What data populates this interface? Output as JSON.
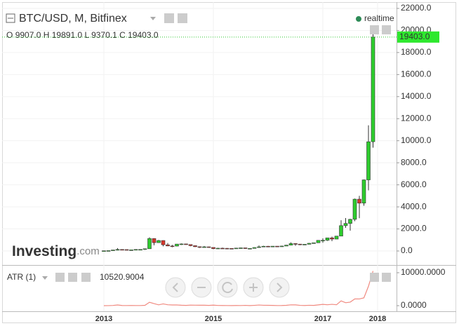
{
  "chart_data": {
    "type": "candlestick",
    "header": {
      "symbol": "BTC/USD, M, Bitfinex",
      "realtime": "realtime",
      "o_key": "O",
      "o": "9907.0",
      "h_key": "H",
      "h": "19891.0",
      "l_key": "L",
      "l": "9370.1",
      "c_key": "C",
      "c": "19403.0"
    },
    "last_price_label": "19403.0",
    "logo": {
      "main": "Investing",
      "suffix": ".com"
    },
    "categories": [
      "2013",
      null,
      null,
      null,
      null,
      null,
      null,
      null,
      null,
      null,
      null,
      null,
      null,
      null,
      null,
      null,
      null,
      null,
      null,
      null,
      null,
      null,
      null,
      null,
      "2015",
      null,
      null,
      null,
      null,
      null,
      null,
      null,
      null,
      null,
      null,
      null,
      null,
      null,
      null,
      null,
      null,
      null,
      null,
      null,
      null,
      null,
      null,
      null,
      "2017",
      null,
      null,
      null,
      null,
      null,
      null,
      null,
      null,
      null,
      null,
      null,
      "2018"
    ],
    "open": [
      13.5,
      20.4,
      33.4,
      93,
      139,
      129,
      97,
      106,
      141,
      141,
      203,
      1130,
      754,
      950,
      560,
      456,
      445,
      627,
      640,
      585,
      480,
      387,
      338,
      378,
      320,
      217,
      254,
      245,
      236,
      230,
      263,
      284,
      230,
      236,
      314,
      377,
      430,
      369,
      437,
      416,
      448,
      531,
      673,
      624,
      575,
      609,
      700,
      745,
      966,
      970,
      1190,
      1080,
      1350,
      2300,
      2500,
      2870,
      4700,
      4340,
      6450,
      9907,
      null
    ],
    "high": [
      20.4,
      33.4,
      95,
      266,
      140,
      130,
      111,
      142,
      147,
      215,
      1240,
      1150,
      1000,
      960,
      720,
      550,
      632,
      680,
      650,
      600,
      505,
      415,
      455,
      390,
      320,
      275,
      300,
      260,
      250,
      270,
      300,
      285,
      245,
      330,
      500,
      465,
      460,
      445,
      440,
      470,
      550,
      780,
      705,
      625,
      620,
      720,
      760,
      975,
      1155,
      1200,
      1300,
      1350,
      2790,
      2990,
      2920,
      4750,
      5000,
      6480,
      11400,
      19891,
      null
    ],
    "low": [
      13.3,
      19.6,
      33,
      50,
      79,
      88,
      65,
      102,
      110,
      104,
      203,
      520,
      740,
      420,
      440,
      340,
      420,
      550,
      565,
      430,
      360,
      275,
      320,
      310,
      160,
      205,
      240,
      215,
      225,
      220,
      260,
      195,
      225,
      235,
      300,
      350,
      350,
      365,
      395,
      412,
      445,
      528,
      470,
      530,
      570,
      605,
      680,
      740,
      750,
      915,
      890,
      1070,
      1340,
      2100,
      1840,
      2700,
      2970,
      4100,
      5500,
      9370.1,
      null
    ],
    "close": [
      20.4,
      33.4,
      93,
      139,
      129,
      97,
      106,
      141,
      141,
      203,
      1130,
      754,
      950,
      560,
      456,
      445,
      627,
      640,
      585,
      480,
      387,
      338,
      378,
      320,
      217,
      254,
      245,
      236,
      230,
      263,
      284,
      230,
      236,
      314,
      377,
      430,
      369,
      437,
      416,
      448,
      531,
      673,
      624,
      575,
      609,
      700,
      745,
      966,
      970,
      1190,
      1080,
      1350,
      2300,
      2500,
      2870,
      4700,
      4340,
      6450,
      9907,
      19403,
      null
    ],
    "up_color": "#2ecc2e",
    "down_color": "#d9352b",
    "ylim": [
      -1000,
      22000
    ],
    "yticks": [
      {
        "value": 0,
        "label": "0.0"
      },
      {
        "value": 2000,
        "label": "2000.0"
      },
      {
        "value": 4000,
        "label": "4000.0"
      },
      {
        "value": 6000,
        "label": "6000.0"
      },
      {
        "value": 8000,
        "label": "8000.0"
      },
      {
        "value": 10000,
        "label": "10000.0"
      },
      {
        "value": 12000,
        "label": "12000.0"
      },
      {
        "value": 14000,
        "label": "14000.0"
      },
      {
        "value": 16000,
        "label": "16000.0"
      },
      {
        "value": 18000,
        "label": "18000.0"
      },
      {
        "value": 20000,
        "label": "20000.0"
      },
      {
        "value": 22000,
        "label": "22000.0"
      }
    ],
    "grid": true,
    "indicator": {
      "name": "ATR (1)",
      "color": "#f08a80",
      "values": [
        7.1,
        13.8,
        62,
        216,
        61,
        42,
        46,
        40,
        37,
        111,
        1037,
        630,
        260,
        540,
        280,
        210,
        212,
        130,
        85,
        170,
        145,
        140,
        135,
        80,
        160,
        70,
        60,
        45,
        25,
        50,
        40,
        90,
        20,
        95,
        200,
        115,
        110,
        80,
        45,
        58,
        105,
        252,
        235,
        95,
        50,
        115,
        80,
        235,
        405,
        285,
        410,
        280,
        1450,
        890,
        1080,
        2050,
        2030,
        2380,
        5900,
        10520.9004,
        null
      ],
      "last": 10520.9004,
      "ylim": [
        -500,
        11500
      ],
      "yticks": [
        {
          "value": 0,
          "label": "0.0000"
        },
        {
          "value": 10000,
          "label": "10000.0000"
        }
      ]
    }
  }
}
